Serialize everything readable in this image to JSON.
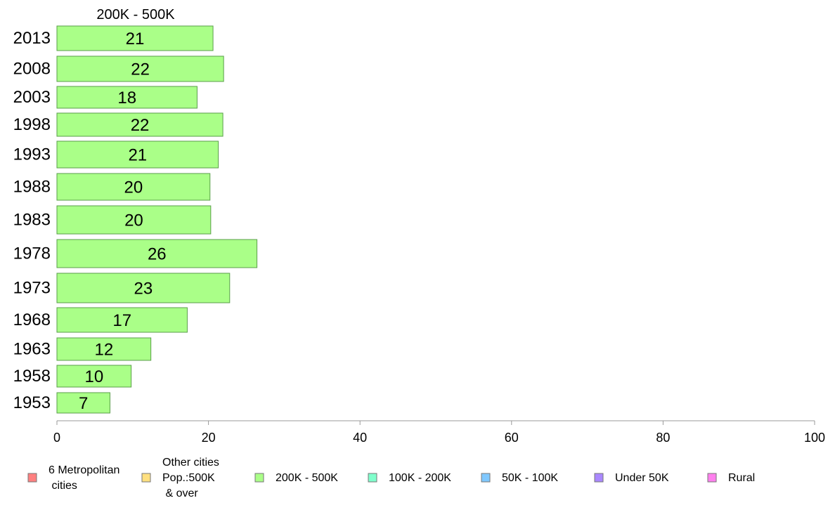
{
  "chart_data": {
    "type": "bar",
    "orientation": "horizontal",
    "title": "200K - 500K",
    "categories": [
      "2013",
      "2008",
      "2003",
      "1998",
      "1993",
      "1988",
      "1983",
      "1978",
      "1973",
      "1968",
      "1963",
      "1958",
      "1953"
    ],
    "values": [
      20.6,
      22.0,
      18.5,
      21.9,
      21.3,
      20.2,
      20.3,
      26.4,
      22.8,
      17.2,
      12.4,
      9.8,
      7.0
    ],
    "data_labels": [
      "21",
      "22",
      "18",
      "22",
      "21",
      "20",
      "20",
      "26",
      "23",
      "17",
      "12",
      "10",
      "7"
    ],
    "xlim": [
      0,
      100
    ],
    "xticks": [
      "0",
      "20",
      "40",
      "60",
      "80",
      "100"
    ],
    "xlabel": "",
    "ylabel": "",
    "grid": false,
    "bar_color": "#aaff88",
    "bar_stroke": "#5a9e4a",
    "legend_position": "bottom",
    "legend": [
      {
        "lines": [
          "6 Metropolitan",
          " cities"
        ],
        "color": "#ff8080"
      },
      {
        "lines": [
          "Other cities",
          "Pop.:500K",
          " & over"
        ],
        "color": "#ffe080"
      },
      {
        "lines": [
          "200K - 500K"
        ],
        "color": "#aaff88"
      },
      {
        "lines": [
          "100K - 200K"
        ],
        "color": "#80ffcc"
      },
      {
        "lines": [
          "50K - 100K"
        ],
        "color": "#80c8ff"
      },
      {
        "lines": [
          "Under 50K"
        ],
        "color": "#aa88ff"
      },
      {
        "lines": [
          "Rural"
        ],
        "color": "#ff80ee"
      }
    ]
  }
}
